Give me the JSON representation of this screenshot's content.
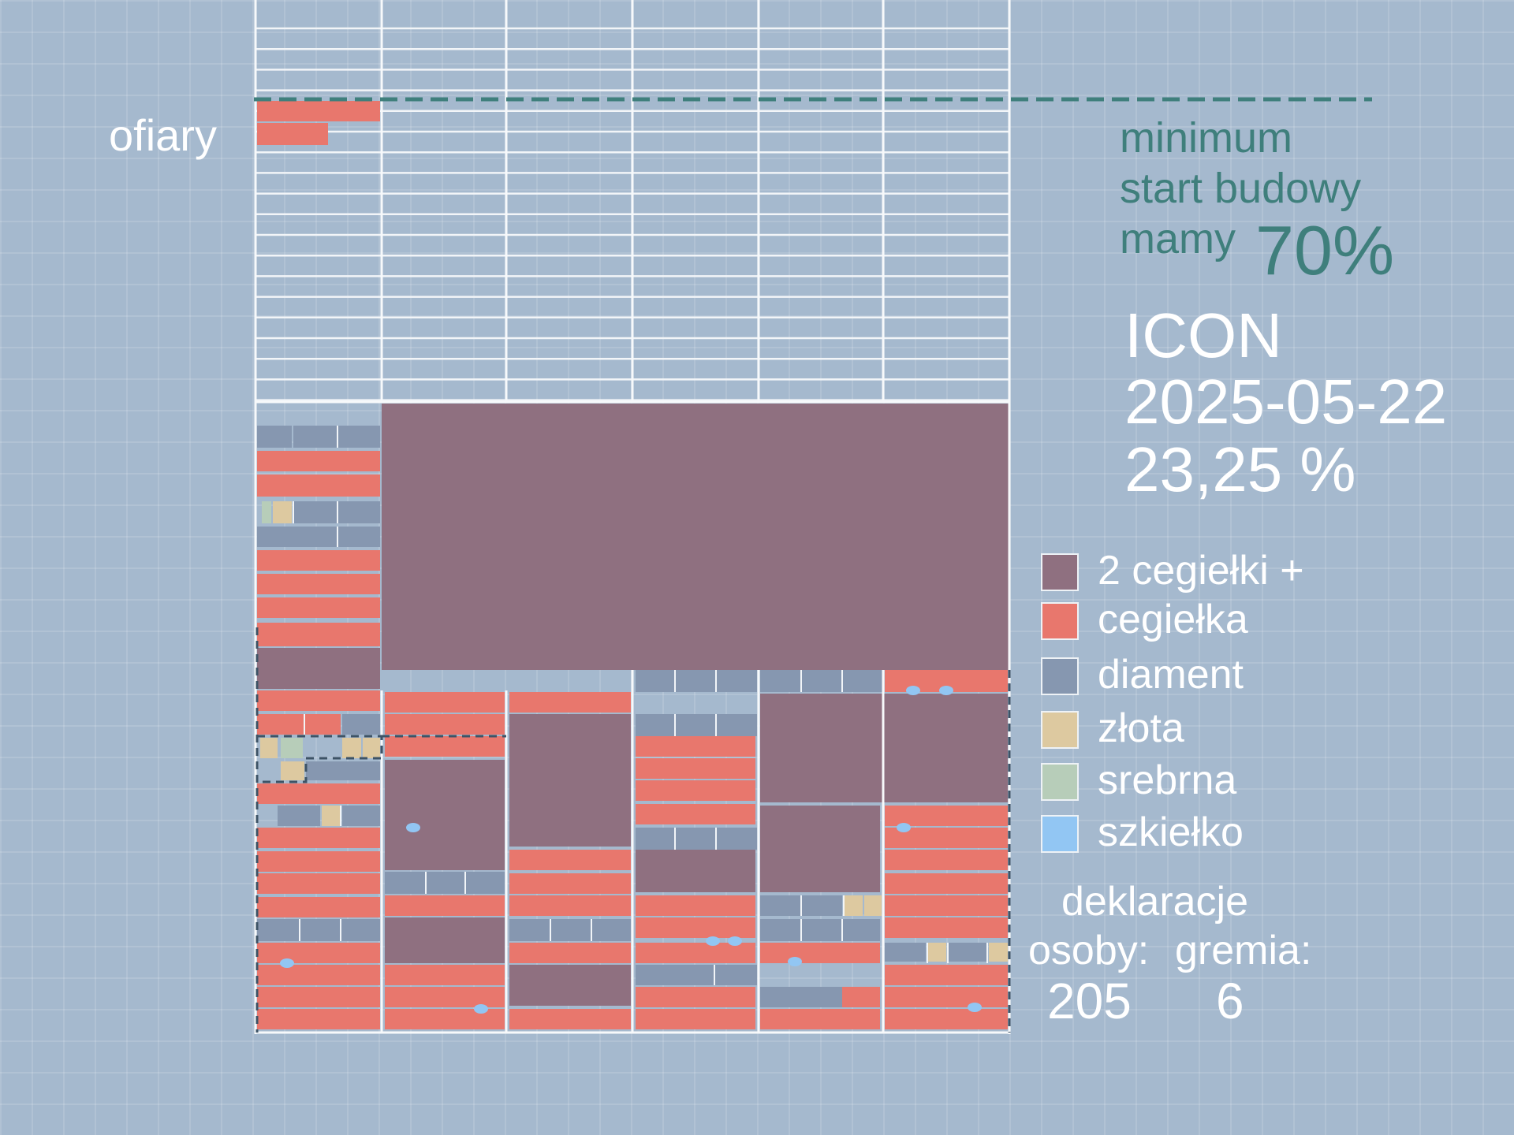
{
  "labels": {
    "ofiary": "ofiary",
    "minimum": "minimum",
    "start_budowy": "start budowy",
    "mamy": "mamy",
    "minimum_percent": "70%"
  },
  "status": {
    "title": "ICON",
    "date": "2025-05-22",
    "progress": "23,25 %"
  },
  "legend": [
    {
      "label": "2 cegiełki +",
      "color": "#8f7080"
    },
    {
      "label": "cegiełka",
      "color": "#e8776d"
    },
    {
      "label": "diament",
      "color": "#8697b0"
    },
    {
      "label": "złota",
      "color": "#ddc9a0"
    },
    {
      "label": "srebrna",
      "color": "#b7cdb9"
    },
    {
      "label": "szkiełko",
      "color": "#92c6f3"
    }
  ],
  "declarations": {
    "title": "deklaracje",
    "persons_label": "osoby:",
    "persons_value": "205",
    "groups_label": "gremia:",
    "groups_value": "6"
  },
  "colors": {
    "background": "#a5b9ce",
    "grid_line": "#ffffff",
    "minimum_line": "#3f7f7c"
  }
}
